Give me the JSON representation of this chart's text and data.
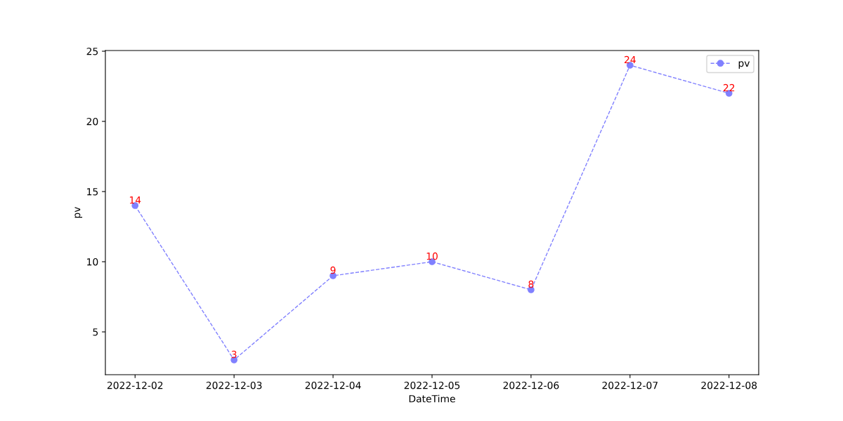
{
  "chart_data": {
    "type": "line",
    "xlabel": "DateTime",
    "ylabel": "pv",
    "categories": [
      "2022-12-02",
      "2022-12-03",
      "2022-12-04",
      "2022-12-05",
      "2022-12-06",
      "2022-12-07",
      "2022-12-08"
    ],
    "series": [
      {
        "name": "pv",
        "color": "#8080ff",
        "values": [
          14,
          3,
          9,
          10,
          8,
          24,
          22
        ]
      }
    ],
    "ylim": [
      1.95,
      25.05
    ],
    "yticks": [
      5,
      10,
      15,
      20,
      25
    ],
    "data_labels": true,
    "legend": "top right",
    "marker": "circle",
    "line_style": "dashed",
    "grid": false
  }
}
